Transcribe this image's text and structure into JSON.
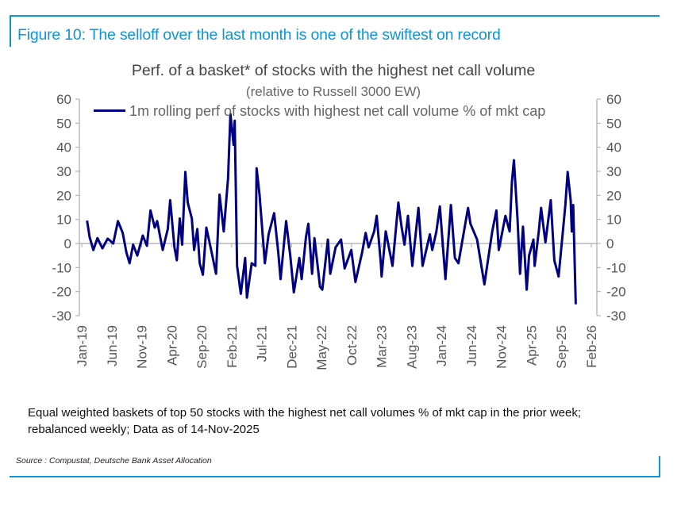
{
  "figure_title": "Figure 10: The selloff over the last month is one of the swiftest on record",
  "note": "Equal weighted baskets of top 50 stocks with the highest net call volumes % of mkt cap in the prior week; rebalanced weekly; Data as of 14-Nov-2025",
  "source": "Source : Compustat, Deutsche Bank Asset Allocation",
  "colors": {
    "accent": "#0f94d8",
    "series": "#000080"
  },
  "chart_data": {
    "type": "line",
    "title": "Perf. of a basket* of stocks with the highest net call volume",
    "subtitle": "(relative to Russell 3000 EW)",
    "xlabel": "",
    "ylabel": "",
    "ylim": [
      -30,
      60
    ],
    "yticks": [
      60,
      50,
      40,
      30,
      20,
      10,
      0,
      -10,
      -20,
      -30
    ],
    "xticks": [
      "Jan-19",
      "Jun-19",
      "Nov-19",
      "Apr-20",
      "Sep-20",
      "Feb-21",
      "Jul-21",
      "Dec-21",
      "May-22",
      "Oct-22",
      "Mar-23",
      "Aug-23",
      "Jan-24",
      "Jun-24",
      "Nov-24",
      "Apr-25",
      "Sep-25",
      "Feb-26"
    ],
    "xlim": [
      "2019-01-01",
      "2026-02-01"
    ],
    "axes": "dual (left and right identical)",
    "grid": false,
    "legend": "top-left",
    "series": [
      {
        "name": "1m rolling perf of stocks with highest net call volume % of mkt cap",
        "points": [
          [
            "2019-01-28",
            9.5
          ],
          [
            "2019-02-10",
            2.7
          ],
          [
            "2019-03-01",
            -2.7
          ],
          [
            "2019-03-22",
            2.2
          ],
          [
            "2019-04-16",
            -2
          ],
          [
            "2019-05-13",
            2
          ],
          [
            "2019-06-10",
            0
          ],
          [
            "2019-07-04",
            9.3
          ],
          [
            "2019-07-28",
            4.4
          ],
          [
            "2019-08-16",
            -3.8
          ],
          [
            "2019-09-01",
            -8.2
          ],
          [
            "2019-09-19",
            -0.5
          ],
          [
            "2019-10-10",
            -5
          ],
          [
            "2019-11-07",
            3.3
          ],
          [
            "2019-11-28",
            -1
          ],
          [
            "2019-12-16",
            13.7
          ],
          [
            "2020-01-07",
            6.6
          ],
          [
            "2020-01-19",
            9.3
          ],
          [
            "2020-02-16",
            -2.7
          ],
          [
            "2020-03-13",
            6
          ],
          [
            "2020-03-25",
            18
          ],
          [
            "2020-04-16",
            -1.6
          ],
          [
            "2020-04-28",
            -7
          ],
          [
            "2020-05-13",
            10.4
          ],
          [
            "2020-05-25",
            -0.5
          ],
          [
            "2020-06-10",
            29.7
          ],
          [
            "2020-06-22",
            17
          ],
          [
            "2020-07-13",
            10.4
          ],
          [
            "2020-07-25",
            -2.7
          ],
          [
            "2020-08-10",
            6
          ],
          [
            "2020-08-22",
            -8.2
          ],
          [
            "2020-09-07",
            -13
          ],
          [
            "2020-09-25",
            6.6
          ],
          [
            "2020-10-22",
            -3.8
          ],
          [
            "2020-11-13",
            -12.6
          ],
          [
            "2020-12-01",
            20.3
          ],
          [
            "2020-12-22",
            5
          ],
          [
            "2021-01-13",
            27
          ],
          [
            "2021-01-25",
            53.8
          ],
          [
            "2021-02-10",
            41
          ],
          [
            "2021-02-16",
            51
          ],
          [
            "2021-02-28",
            -9.3
          ],
          [
            "2021-03-19",
            -20.9
          ],
          [
            "2021-04-10",
            -6
          ],
          [
            "2021-04-19",
            -22.5
          ],
          [
            "2021-05-13",
            -8.2
          ],
          [
            "2021-06-01",
            -9.3
          ],
          [
            "2021-06-07",
            31.3
          ],
          [
            "2021-06-22",
            20.3
          ],
          [
            "2021-07-19",
            -8.2
          ],
          [
            "2021-08-07",
            3.8
          ],
          [
            "2021-09-04",
            12.6
          ],
          [
            "2021-09-25",
            -3.8
          ],
          [
            "2021-10-07",
            -14.8
          ],
          [
            "2021-11-04",
            9.3
          ],
          [
            "2021-11-25",
            -5
          ],
          [
            "2021-12-13",
            -20.3
          ],
          [
            "2022-01-10",
            -6
          ],
          [
            "2022-01-22",
            -14.8
          ],
          [
            "2022-02-13",
            2.7
          ],
          [
            "2022-02-25",
            8.2
          ],
          [
            "2022-03-16",
            -12.6
          ],
          [
            "2022-03-28",
            2.2
          ],
          [
            "2022-04-25",
            -18
          ],
          [
            "2022-05-07",
            -19.2
          ],
          [
            "2022-06-04",
            1.6
          ],
          [
            "2022-06-16",
            -12.6
          ],
          [
            "2022-07-13",
            -1.6
          ],
          [
            "2022-08-10",
            1.6
          ],
          [
            "2022-08-28",
            -10.4
          ],
          [
            "2022-10-01",
            -2.7
          ],
          [
            "2022-10-22",
            -16
          ],
          [
            "2022-11-25",
            -3.8
          ],
          [
            "2022-12-13",
            4.4
          ],
          [
            "2022-12-28",
            -1.6
          ],
          [
            "2023-01-25",
            5
          ],
          [
            "2023-02-07",
            11.5
          ],
          [
            "2023-02-28",
            -8.2
          ],
          [
            "2023-03-04",
            -13.7
          ],
          [
            "2023-03-25",
            5
          ],
          [
            "2023-04-28",
            -9.3
          ],
          [
            "2023-05-28",
            17
          ],
          [
            "2023-06-13",
            7
          ],
          [
            "2023-06-28",
            -0.5
          ],
          [
            "2023-07-16",
            11.5
          ],
          [
            "2023-08-07",
            -9.3
          ],
          [
            "2023-09-07",
            14.8
          ],
          [
            "2023-09-28",
            -9.3
          ],
          [
            "2023-11-04",
            3.8
          ],
          [
            "2023-11-16",
            -2.7
          ],
          [
            "2023-12-07",
            5
          ],
          [
            "2023-12-25",
            15.4
          ],
          [
            "2024-01-22",
            -14.8
          ],
          [
            "2024-02-19",
            16
          ],
          [
            "2024-03-10",
            -6
          ],
          [
            "2024-03-28",
            -8.2
          ],
          [
            "2024-05-16",
            14.8
          ],
          [
            "2024-05-28",
            8.2
          ],
          [
            "2024-07-01",
            1.6
          ],
          [
            "2024-08-07",
            -17
          ],
          [
            "2024-09-04",
            -1.6
          ],
          [
            "2024-09-16",
            5
          ],
          [
            "2024-10-07",
            13.7
          ],
          [
            "2024-10-19",
            -2.7
          ],
          [
            "2024-11-22",
            11.5
          ],
          [
            "2024-12-13",
            5
          ],
          [
            "2024-12-25",
            25.8
          ],
          [
            "2025-01-04",
            34.6
          ],
          [
            "2025-01-22",
            10.4
          ],
          [
            "2025-02-04",
            -12.6
          ],
          [
            "2025-02-19",
            7
          ],
          [
            "2025-03-10",
            -19.2
          ],
          [
            "2025-03-22",
            -5
          ],
          [
            "2025-04-13",
            1.6
          ],
          [
            "2025-04-19",
            -9.3
          ],
          [
            "2025-05-10",
            5
          ],
          [
            "2025-05-22",
            14.8
          ],
          [
            "2025-06-13",
            0.5
          ],
          [
            "2025-07-10",
            18
          ],
          [
            "2025-07-28",
            -7
          ],
          [
            "2025-08-19",
            -13.7
          ],
          [
            "2025-09-07",
            2.7
          ],
          [
            "2025-09-22",
            16
          ],
          [
            "2025-10-04",
            29.7
          ],
          [
            "2025-10-19",
            18
          ],
          [
            "2025-10-25",
            5
          ],
          [
            "2025-11-01",
            16
          ],
          [
            "2025-11-10",
            -12.6
          ],
          [
            "2025-11-14",
            -25.3
          ]
        ]
      }
    ]
  }
}
